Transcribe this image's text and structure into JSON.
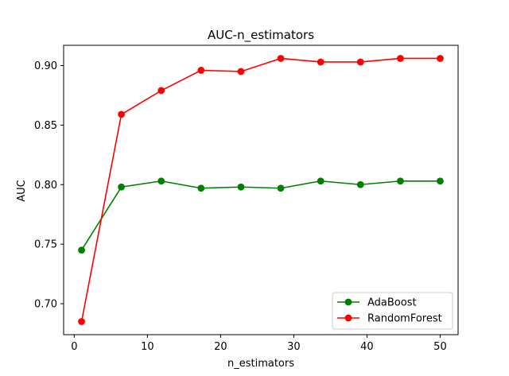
{
  "chart_data": {
    "type": "line",
    "title": "AUC-n_estimators",
    "xlabel": "n_estimators",
    "ylabel": "AUC",
    "xlim": [
      -1.45,
      52.45
    ],
    "ylim": [
      0.674,
      0.917
    ],
    "xticks": [
      0,
      10,
      20,
      30,
      40,
      50
    ],
    "xtick_labels": [
      "0",
      "10",
      "20",
      "30",
      "40",
      "50"
    ],
    "yticks": [
      0.7,
      0.75,
      0.8,
      0.85,
      0.9
    ],
    "ytick_labels": [
      "0.70",
      "0.75",
      "0.80",
      "0.85",
      "0.90"
    ],
    "grid": false,
    "legend_position": "bottom-right",
    "x": [
      1,
      6.44,
      11.89,
      17.33,
      22.78,
      28.22,
      33.67,
      39.11,
      44.56,
      50
    ],
    "series": [
      {
        "name": "AdaBoost",
        "color": "#008000",
        "values": [
          0.745,
          0.798,
          0.803,
          0.797,
          0.798,
          0.797,
          0.803,
          0.8,
          0.803,
          0.803
        ]
      },
      {
        "name": "RandomForest",
        "color": "#ff0000",
        "values": [
          0.685,
          0.859,
          0.879,
          0.896,
          0.895,
          0.906,
          0.903,
          0.903,
          0.906,
          0.906
        ]
      }
    ]
  }
}
